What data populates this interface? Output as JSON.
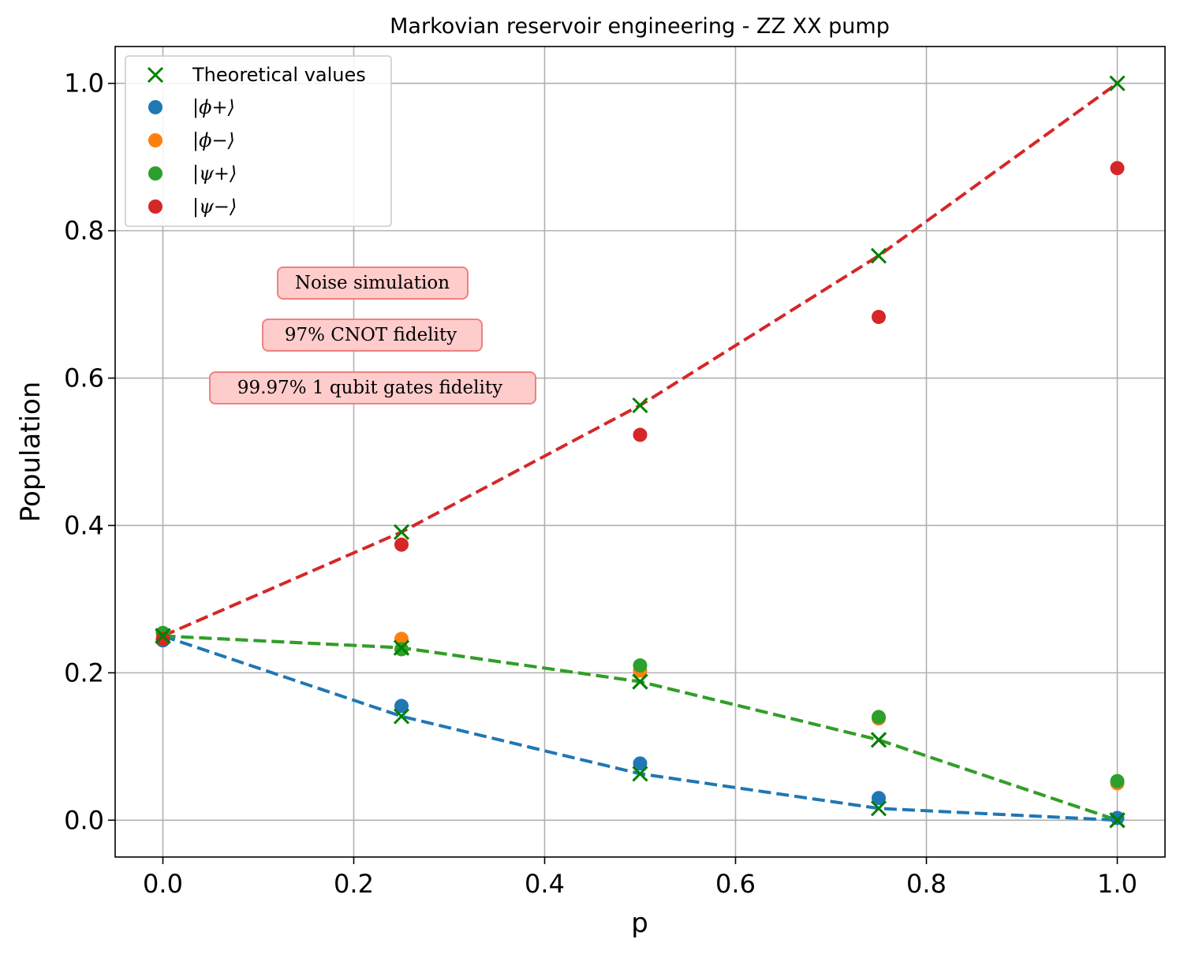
{
  "chart_data": {
    "type": "scatter",
    "title": "Markovian reservoir engineering - ZZ XX pump",
    "xlabel": "p",
    "ylabel": "Population",
    "xlim": [
      -0.05,
      1.05
    ],
    "ylim": [
      -0.05,
      1.05
    ],
    "grid": true,
    "xticks": [
      0.0,
      0.2,
      0.4,
      0.6,
      0.8,
      1.0
    ],
    "xtick_labels": [
      "0.0",
      "0.2",
      "0.4",
      "0.6",
      "0.8",
      "1.0"
    ],
    "yticks": [
      0.0,
      0.2,
      0.4,
      0.6,
      0.8,
      1.0
    ],
    "ytick_labels": [
      "0.0",
      "0.2",
      "0.4",
      "0.6",
      "0.8",
      "1.0"
    ],
    "x": [
      0.0,
      0.25,
      0.5,
      0.75,
      1.0
    ],
    "theoretical": {
      "name": "Theoretical values",
      "marker": "x",
      "color": "#008000",
      "series": [
        {
          "for": "phi+",
          "values": [
            0.25,
            0.141,
            0.063,
            0.016,
            0.0
          ]
        },
        {
          "for": "phi-",
          "values": [
            0.25,
            0.234,
            0.188,
            0.109,
            0.0
          ]
        },
        {
          "for": "psi+",
          "values": [
            0.25,
            0.234,
            0.188,
            0.109,
            0.0
          ]
        },
        {
          "for": "psi-",
          "values": [
            0.25,
            0.391,
            0.563,
            0.766,
            1.0
          ]
        }
      ]
    },
    "series": [
      {
        "name": "|ϕ+⟩",
        "sym": "ϕ",
        "sign": "+",
        "color": "#1f77b4",
        "values": [
          0.244,
          0.155,
          0.077,
          0.03,
          0.003
        ]
      },
      {
        "name": "|ϕ−⟩",
        "sym": "ϕ",
        "sign": "−",
        "color": "#ff7f0e",
        "values": [
          0.254,
          0.246,
          0.203,
          0.138,
          0.05
        ]
      },
      {
        "name": "|ψ+⟩",
        "sym": "ψ",
        "sign": "+",
        "color": "#2ca02c",
        "values": [
          0.254,
          0.232,
          0.21,
          0.14,
          0.053
        ]
      },
      {
        "name": "|ψ−⟩",
        "sym": "ψ",
        "sign": "−",
        "color": "#d62728",
        "values": [
          0.246,
          0.374,
          0.523,
          0.683,
          0.885
        ]
      }
    ],
    "annotations": [
      "Noise simulation",
      "97% CNOT fidelity",
      "99.97% 1 qubit gates fidelity"
    ],
    "legend_location": "upper-left"
  }
}
